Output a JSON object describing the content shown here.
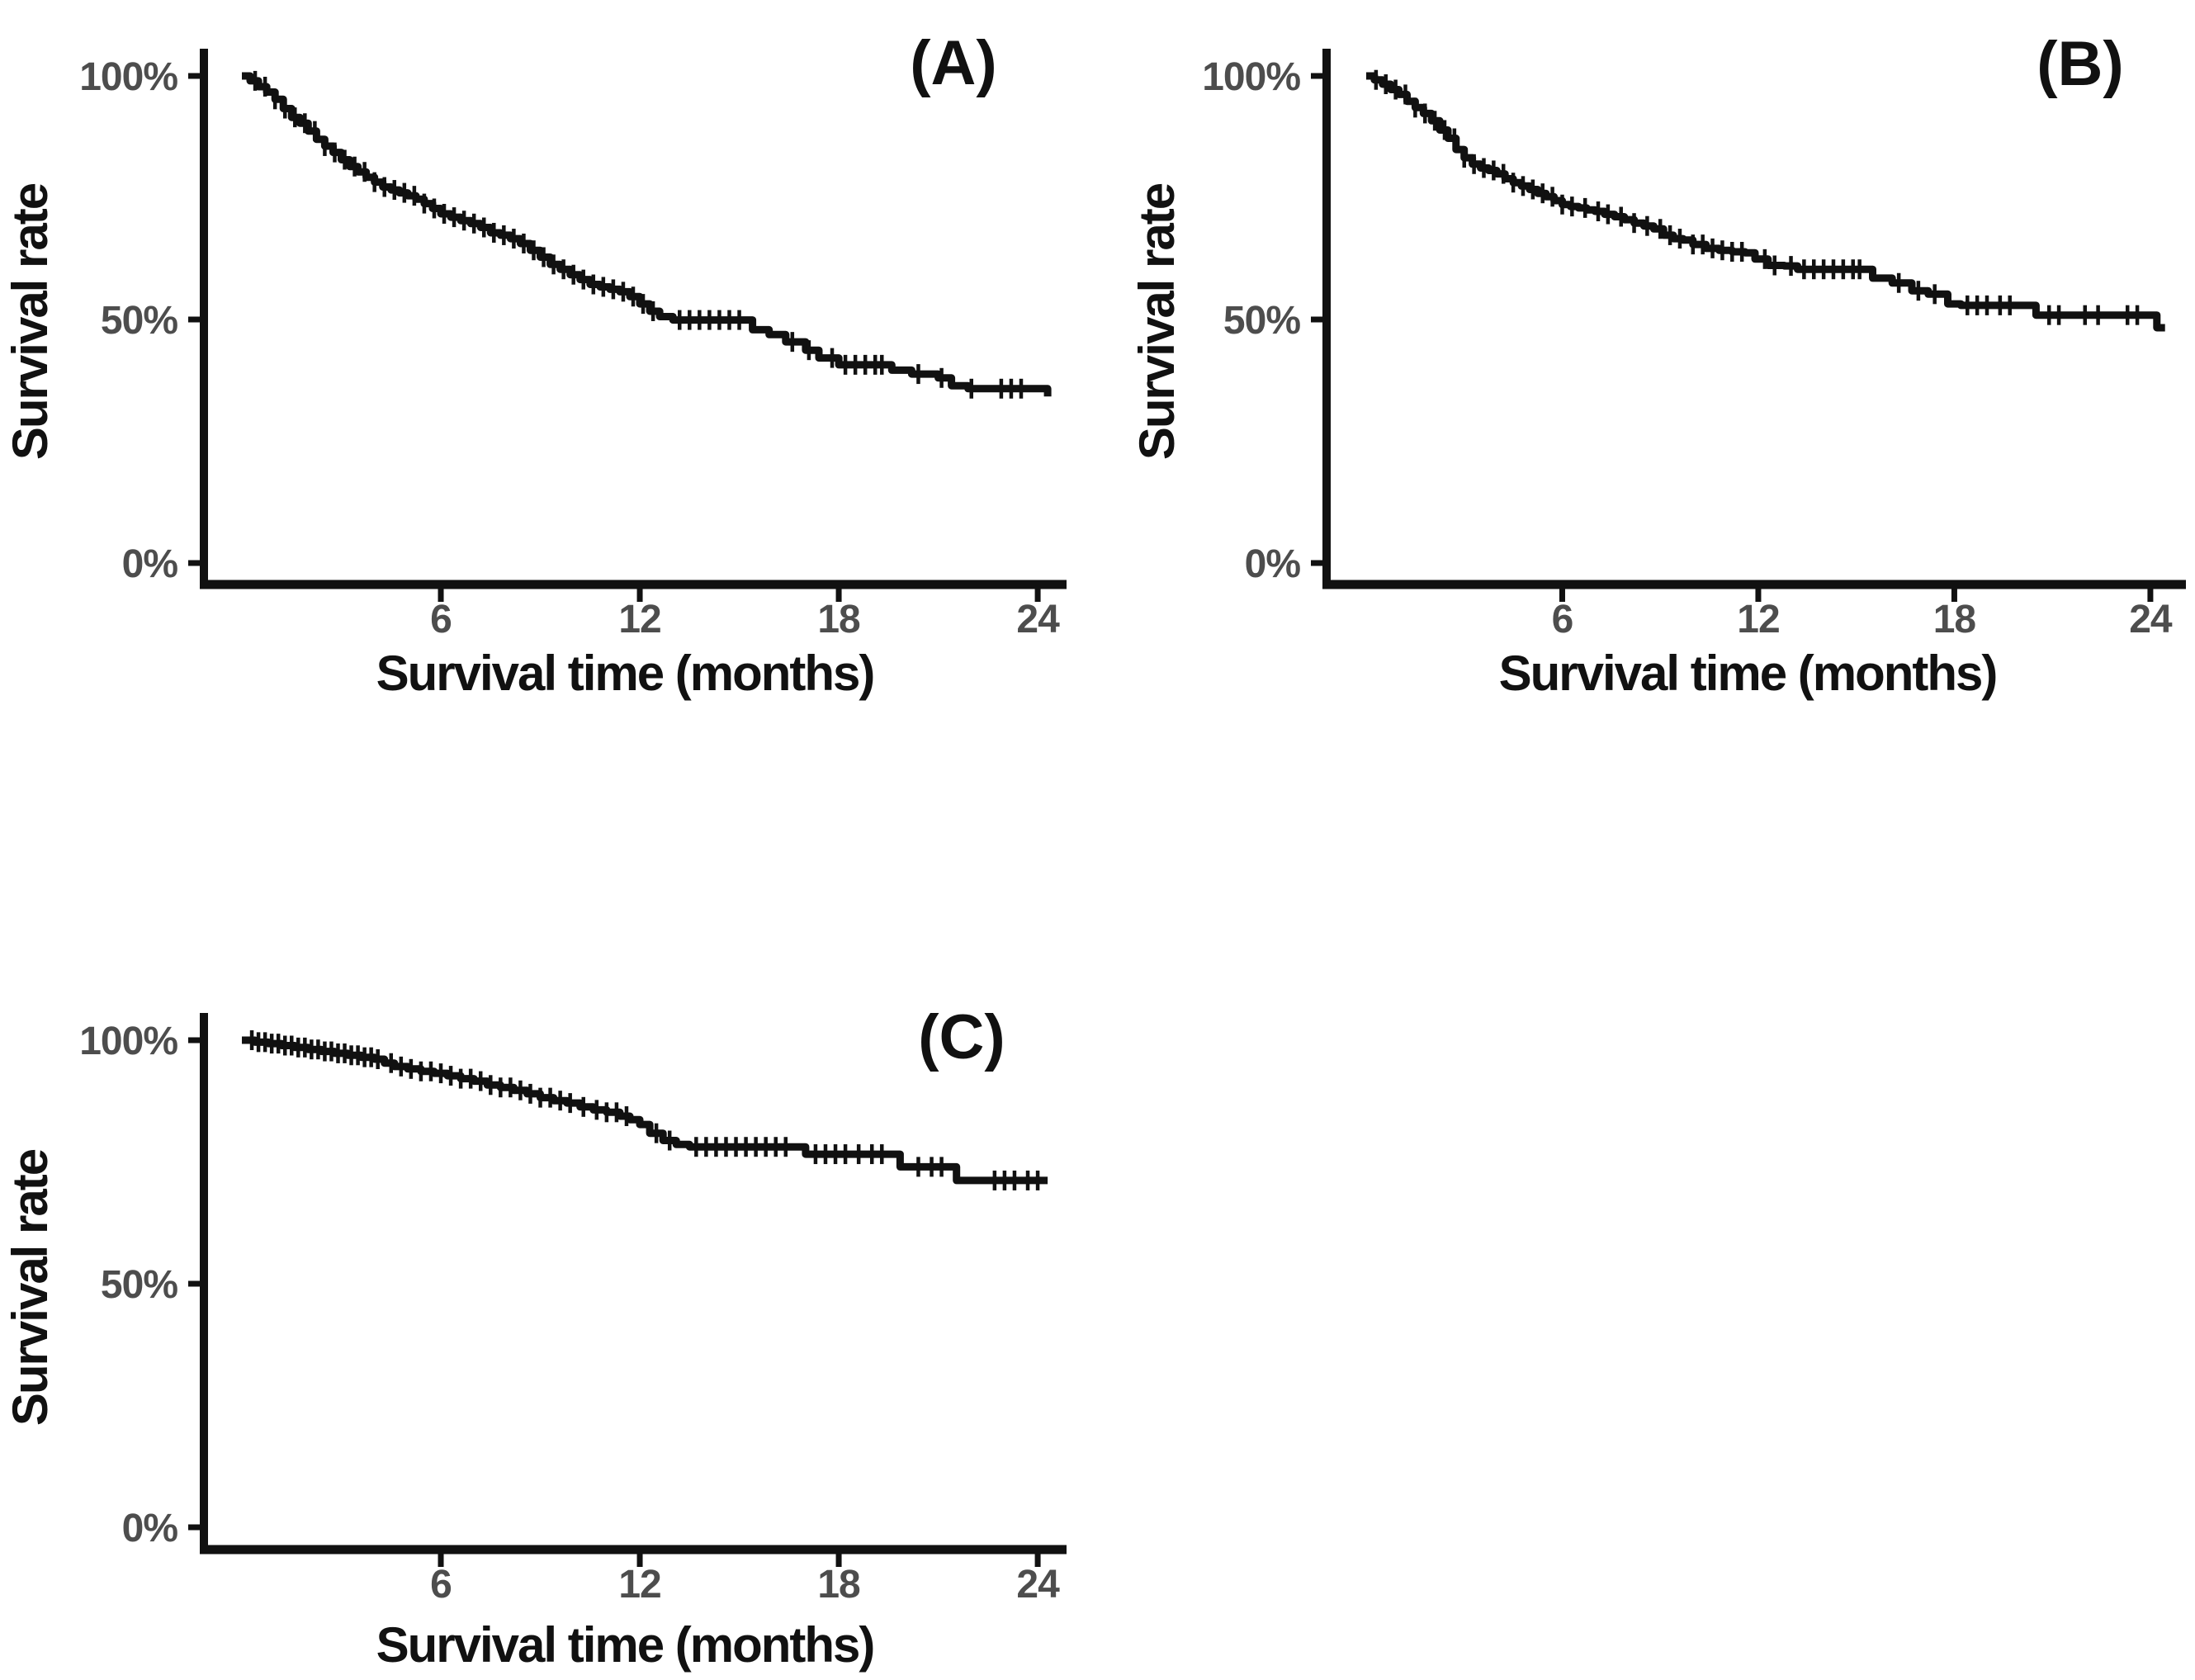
{
  "figure": {
    "background": "#ffffff",
    "colors": {
      "curve": "#111111",
      "axis": "#111111",
      "tick_label": "#4d4d4d",
      "axis_title": "#111111"
    },
    "panels": [
      {
        "letter": "(A)",
        "ylabel": "Survival rate",
        "xlabel": "Survival time (months)"
      },
      {
        "letter": "(B)",
        "ylabel": "Survival rate",
        "xlabel": "Survival time (months)"
      },
      {
        "letter": "(C)",
        "ylabel": "Survival rate",
        "xlabel": "Survival time (months)"
      }
    ]
  },
  "chart_data": [
    {
      "type": "line",
      "subtype": "kaplan-meier-step",
      "panel": "A",
      "title": "(A)",
      "xlabel": "Survival time (months)",
      "ylabel": "Survival rate",
      "x_unit": "months",
      "y_unit": "percent",
      "xlim": [
        -1.1,
        24.9
      ],
      "ylim": [
        -5,
        105
      ],
      "grid": false,
      "legend": "none",
      "xticks": [
        {
          "value": 6,
          "label": "6"
        },
        {
          "value": 12,
          "label": "12"
        },
        {
          "value": 18,
          "label": "18"
        },
        {
          "value": 24,
          "label": "24"
        }
      ],
      "yticks": [
        {
          "value": 100,
          "label": "100%"
        },
        {
          "value": 50,
          "label": "50%"
        },
        {
          "value": 0,
          "label": "0%"
        }
      ],
      "series": [
        {
          "name": "survival",
          "points": [
            [
              0,
              100
            ],
            [
              0.25,
              99
            ],
            [
              0.5,
              97.8
            ],
            [
              0.75,
              96.7
            ],
            [
              1.0,
              95.2
            ],
            [
              1.25,
              93.3
            ],
            [
              1.5,
              91.5
            ],
            [
              1.75,
              90.3
            ],
            [
              2.0,
              88.7
            ],
            [
              2.25,
              87.0
            ],
            [
              2.5,
              85.6
            ],
            [
              2.75,
              84.3
            ],
            [
              3.0,
              82.8
            ],
            [
              3.25,
              81.4
            ],
            [
              3.5,
              80.3
            ],
            [
              3.75,
              79.2
            ],
            [
              4.0,
              78.2
            ],
            [
              4.25,
              77.2
            ],
            [
              4.5,
              76.6
            ],
            [
              4.75,
              76.0
            ],
            [
              5.0,
              75.4
            ],
            [
              5.25,
              74.7
            ],
            [
              5.5,
              73.8
            ],
            [
              5.75,
              72.8
            ],
            [
              6.0,
              71.7
            ],
            [
              6.3,
              71.0
            ],
            [
              6.6,
              70.3
            ],
            [
              6.9,
              69.7
            ],
            [
              7.2,
              68.9
            ],
            [
              7.5,
              67.8
            ],
            [
              7.8,
              67.3
            ],
            [
              8.1,
              66.6
            ],
            [
              8.4,
              65.6
            ],
            [
              8.7,
              64.2
            ],
            [
              9.0,
              62.8
            ],
            [
              9.3,
              61.3
            ],
            [
              9.6,
              60.3
            ],
            [
              9.9,
              59.2
            ],
            [
              10.2,
              58.2
            ],
            [
              10.5,
              57.2
            ],
            [
              10.8,
              56.7
            ],
            [
              11.1,
              56.2
            ],
            [
              11.4,
              55.7
            ],
            [
              11.7,
              54.7
            ],
            [
              12.0,
              53.2
            ],
            [
              12.3,
              51.7
            ],
            [
              12.6,
              50.6
            ],
            [
              13.0,
              49.9
            ],
            [
              15.2,
              49.9
            ],
            [
              15.4,
              47.9
            ],
            [
              15.9,
              46.9
            ],
            [
              16.4,
              45.4
            ],
            [
              17.0,
              43.7
            ],
            [
              17.4,
              42.1
            ],
            [
              18.0,
              40.7
            ],
            [
              19.4,
              40.7
            ],
            [
              19.6,
              39.6
            ],
            [
              20.2,
              38.8
            ],
            [
              21.0,
              38.0
            ],
            [
              21.4,
              36.4
            ],
            [
              21.9,
              35.8
            ],
            [
              24.1,
              35.8
            ],
            [
              24.3,
              34.2
            ]
          ]
        }
      ],
      "censor_times": [
        0.4,
        0.7,
        1.0,
        1.3,
        1.6,
        1.9,
        2.2,
        2.5,
        2.8,
        3.1,
        3.4,
        3.7,
        4.0,
        4.3,
        4.6,
        4.9,
        5.2,
        5.5,
        5.8,
        6.1,
        6.4,
        6.7,
        7.0,
        7.3,
        7.6,
        7.9,
        8.2,
        8.5,
        8.8,
        9.1,
        9.4,
        9.7,
        10.0,
        10.3,
        10.6,
        10.9,
        11.2,
        11.5,
        11.8,
        12.1,
        12.4,
        13.2,
        13.5,
        13.8,
        14.1,
        14.4,
        14.7,
        15.0,
        16.6,
        17.1,
        17.8,
        18.2,
        18.5,
        18.8,
        19.1,
        19.3,
        20.4,
        21.1,
        22.0,
        22.9,
        23.2,
        23.5
      ]
    },
    {
      "type": "line",
      "subtype": "kaplan-meier-step",
      "panel": "B",
      "title": "(B)",
      "xlabel": "Survival time (months)",
      "ylabel": "Survival rate",
      "x_unit": "months",
      "y_unit": "percent",
      "xlim": [
        -1.2,
        25.0
      ],
      "ylim": [
        -5,
        105
      ],
      "grid": false,
      "legend": "none",
      "xticks": [
        {
          "value": 6,
          "label": "6"
        },
        {
          "value": 12,
          "label": "12"
        },
        {
          "value": 18,
          "label": "18"
        },
        {
          "value": 24,
          "label": "24"
        }
      ],
      "yticks": [
        {
          "value": 100,
          "label": "100%"
        },
        {
          "value": 50,
          "label": "50%"
        },
        {
          "value": 0,
          "label": "0%"
        }
      ],
      "series": [
        {
          "name": "survival",
          "points": [
            [
              0,
              100
            ],
            [
              0.25,
              99.2
            ],
            [
              0.5,
              98.3
            ],
            [
              0.75,
              97.2
            ],
            [
              1.0,
              96.2
            ],
            [
              1.25,
              94.8
            ],
            [
              1.5,
              93.5
            ],
            [
              1.75,
              92.3
            ],
            [
              2.0,
              90.8
            ],
            [
              2.25,
              88.9
            ],
            [
              2.5,
              87.2
            ],
            [
              2.75,
              84.9
            ],
            [
              3.0,
              83.2
            ],
            [
              3.25,
              81.9
            ],
            [
              3.5,
              81.1
            ],
            [
              3.75,
              80.6
            ],
            [
              4.0,
              79.9
            ],
            [
              4.25,
              78.9
            ],
            [
              4.5,
              78.1
            ],
            [
              4.75,
              77.4
            ],
            [
              5.0,
              76.7
            ],
            [
              5.25,
              75.9
            ],
            [
              5.5,
              75.2
            ],
            [
              5.75,
              74.4
            ],
            [
              6.0,
              73.6
            ],
            [
              6.25,
              73.2
            ],
            [
              6.5,
              72.9
            ],
            [
              6.75,
              72.5
            ],
            [
              7.0,
              72.2
            ],
            [
              7.3,
              71.6
            ],
            [
              7.6,
              71.1
            ],
            [
              7.9,
              70.5
            ],
            [
              8.2,
              69.8
            ],
            [
              8.5,
              69.2
            ],
            [
              8.8,
              68.6
            ],
            [
              9.1,
              67.3
            ],
            [
              9.4,
              66.6
            ],
            [
              9.7,
              66.3
            ],
            [
              10.0,
              65.4
            ],
            [
              10.4,
              64.6
            ],
            [
              10.8,
              64.2
            ],
            [
              11.2,
              63.9
            ],
            [
              11.6,
              63.7
            ],
            [
              11.9,
              62.4
            ],
            [
              12.3,
              61.1
            ],
            [
              12.8,
              61.0
            ],
            [
              13.2,
              60.3
            ],
            [
              15.3,
              60.3
            ],
            [
              15.5,
              58.5
            ],
            [
              16.1,
              57.5
            ],
            [
              16.7,
              55.9
            ],
            [
              17.2,
              55.2
            ],
            [
              17.8,
              53.2
            ],
            [
              18.2,
              52.9
            ],
            [
              20.3,
              52.9
            ],
            [
              20.5,
              50.9
            ],
            [
              23.9,
              50.9
            ],
            [
              24.2,
              48.3
            ],
            [
              24.45,
              48.3
            ]
          ]
        }
      ],
      "censor_times": [
        0.3,
        0.6,
        0.9,
        1.2,
        1.5,
        1.8,
        2.1,
        2.4,
        2.7,
        3.0,
        3.3,
        3.6,
        3.9,
        4.2,
        4.5,
        4.8,
        5.1,
        5.4,
        5.7,
        6.0,
        6.3,
        6.7,
        7.1,
        7.4,
        7.8,
        8.2,
        8.6,
        9.0,
        9.3,
        9.6,
        10.0,
        10.3,
        10.6,
        10.9,
        11.2,
        11.5,
        12.2,
        12.5,
        13.0,
        13.4,
        13.7,
        14.0,
        14.3,
        14.6,
        14.9,
        15.1,
        16.3,
        16.9,
        17.4,
        18.4,
        18.7,
        19.0,
        19.4,
        19.7,
        20.9,
        21.2,
        22.0,
        22.4,
        23.3,
        23.6
      ]
    },
    {
      "type": "line",
      "subtype": "kaplan-meier-step",
      "panel": "C",
      "title": "(C)",
      "xlabel": "Survival time (months)",
      "ylabel": "Survival rate",
      "x_unit": "months",
      "y_unit": "percent",
      "xlim": [
        -1.1,
        24.9
      ],
      "ylim": [
        -5,
        105
      ],
      "grid": false,
      "legend": "none",
      "xticks": [
        {
          "value": 6,
          "label": "6"
        },
        {
          "value": 12,
          "label": "12"
        },
        {
          "value": 18,
          "label": "18"
        },
        {
          "value": 24,
          "label": "24"
        }
      ],
      "yticks": [
        {
          "value": 100,
          "label": "100%"
        },
        {
          "value": 50,
          "label": "50%"
        },
        {
          "value": 0,
          "label": "0%"
        }
      ],
      "series": [
        {
          "name": "survival",
          "points": [
            [
              0,
              100
            ],
            [
              0.4,
              99.6
            ],
            [
              0.8,
              99.3
            ],
            [
              1.2,
              98.9
            ],
            [
              1.6,
              98.5
            ],
            [
              2.0,
              98.1
            ],
            [
              2.4,
              97.7
            ],
            [
              2.8,
              97.3
            ],
            [
              3.2,
              96.9
            ],
            [
              3.6,
              96.5
            ],
            [
              4.0,
              96.1
            ],
            [
              4.3,
              95.3
            ],
            [
              4.6,
              94.6
            ],
            [
              5.0,
              94.1
            ],
            [
              5.4,
              93.6
            ],
            [
              5.8,
              93.2
            ],
            [
              6.2,
              92.7
            ],
            [
              6.6,
              92.1
            ],
            [
              7.0,
              91.6
            ],
            [
              7.4,
              90.8
            ],
            [
              7.8,
              90.3
            ],
            [
              8.2,
              89.7
            ],
            [
              8.6,
              89.0
            ],
            [
              9.0,
              88.2
            ],
            [
              9.4,
              87.6
            ],
            [
              9.8,
              87.1
            ],
            [
              10.2,
              86.3
            ],
            [
              10.6,
              85.7
            ],
            [
              11.0,
              85.2
            ],
            [
              11.4,
              84.4
            ],
            [
              11.7,
              83.7
            ],
            [
              12.0,
              82.7
            ],
            [
              12.3,
              80.9
            ],
            [
              12.7,
              79.4
            ],
            [
              13.1,
              78.6
            ],
            [
              13.5,
              78.1
            ],
            [
              16.8,
              78.1
            ],
            [
              17.0,
              76.6
            ],
            [
              19.6,
              76.6
            ],
            [
              19.85,
              74.0
            ],
            [
              21.35,
              74.0
            ],
            [
              21.55,
              71.2
            ],
            [
              24.3,
              71.2
            ]
          ]
        }
      ],
      "censor_times": [
        0.3,
        0.5,
        0.7,
        0.9,
        1.1,
        1.3,
        1.5,
        1.7,
        1.9,
        2.1,
        2.3,
        2.5,
        2.7,
        2.9,
        3.1,
        3.3,
        3.5,
        3.7,
        3.9,
        4.1,
        4.5,
        4.8,
        5.1,
        5.4,
        5.7,
        6.0,
        6.3,
        6.6,
        6.9,
        7.2,
        7.5,
        7.8,
        8.1,
        8.4,
        8.7,
        9.0,
        9.3,
        9.6,
        9.9,
        10.3,
        10.7,
        11.0,
        11.3,
        11.6,
        12.5,
        12.9,
        13.7,
        14.0,
        14.3,
        14.6,
        14.9,
        15.2,
        15.5,
        15.8,
        16.1,
        16.4,
        17.3,
        17.6,
        17.9,
        18.2,
        18.6,
        19.0,
        19.3,
        20.4,
        20.8,
        21.1,
        22.7,
        23.0,
        23.3,
        23.7,
        24.0
      ]
    }
  ]
}
